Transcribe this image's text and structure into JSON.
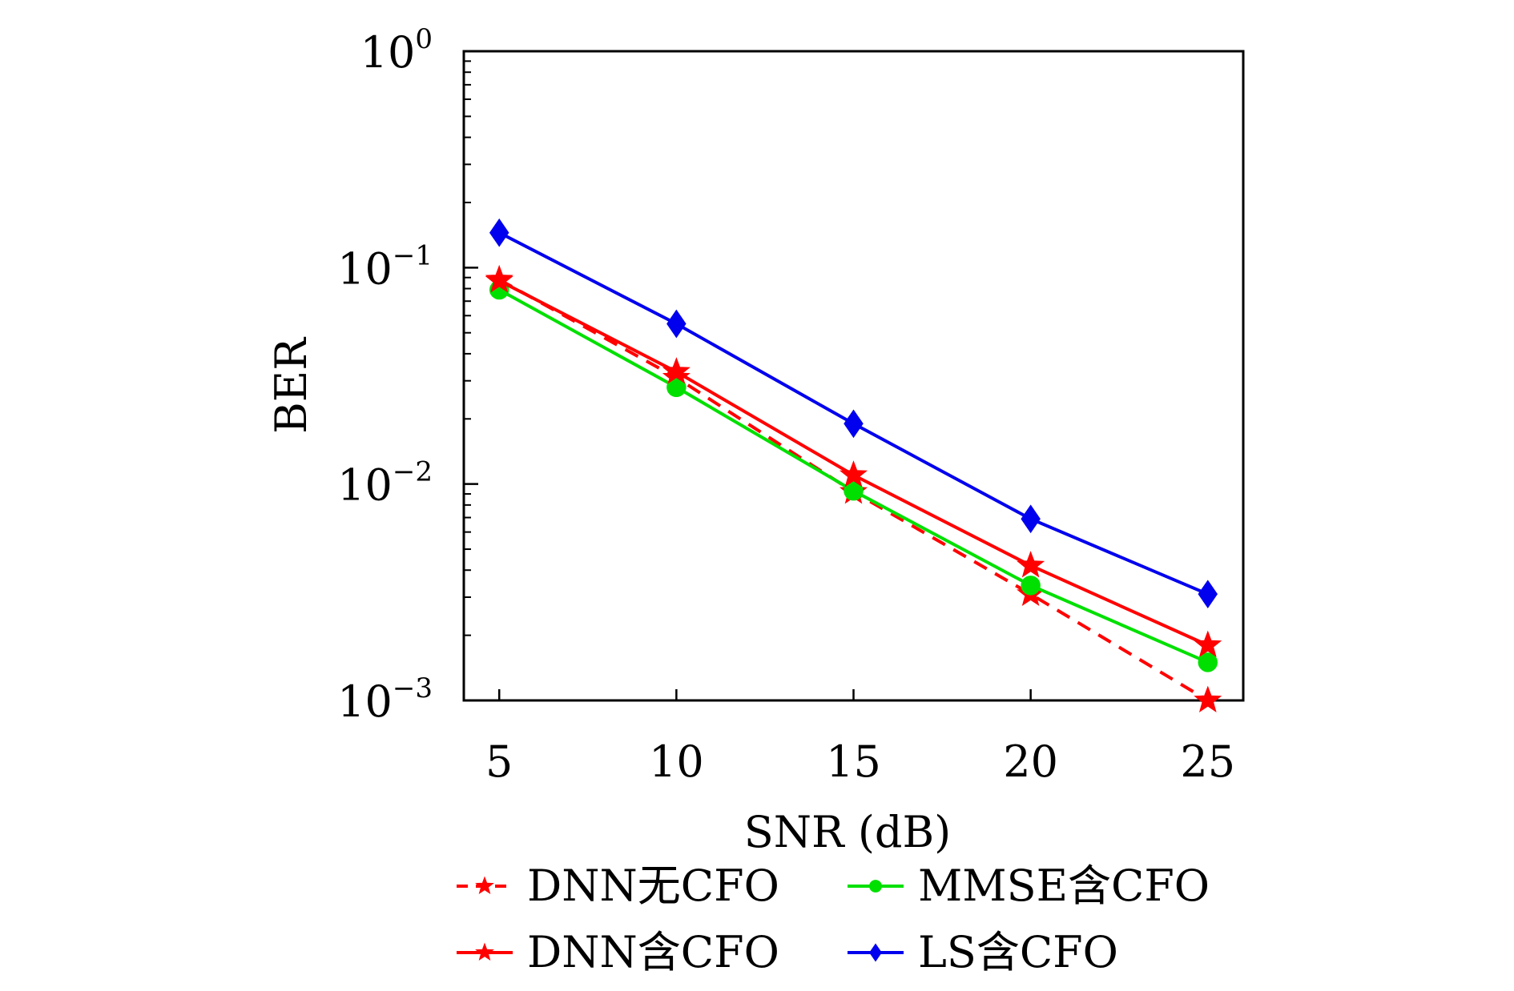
{
  "chart_data": {
    "type": "line",
    "title": "",
    "xlabel": "SNR (dB)",
    "ylabel": "BER",
    "x": [
      5,
      10,
      15,
      20,
      25
    ],
    "xlim": [
      4,
      26
    ],
    "ylim": [
      0.001,
      1
    ],
    "yscale": "log",
    "x_ticks": [
      "5",
      "10",
      "15",
      "20",
      "25"
    ],
    "y_ticks": [
      {
        "base": "10",
        "exp": "0",
        "value": 1
      },
      {
        "base": "10",
        "exp": "−1",
        "value": 0.1
      },
      {
        "base": "10",
        "exp": "−2",
        "value": 0.01
      },
      {
        "base": "10",
        "exp": "−3",
        "value": 0.001
      }
    ],
    "grid": false,
    "legend_position": "bottom",
    "series": [
      {
        "name": "DNN无CFO",
        "color": "#ff0000",
        "line": "dashed",
        "marker": "star",
        "values": [
          0.088,
          0.031,
          0.0092,
          0.0031,
          0.001
        ]
      },
      {
        "name": "MMSE含CFO",
        "color": "#00e000",
        "line": "solid",
        "marker": "circle",
        "values": [
          0.079,
          0.028,
          0.0093,
          0.0034,
          0.0015
        ]
      },
      {
        "name": "DNN含CFO",
        "color": "#ff0000",
        "line": "solid",
        "marker": "star",
        "values": [
          0.087,
          0.033,
          0.011,
          0.0042,
          0.0018
        ]
      },
      {
        "name": "LS含CFO",
        "color": "#0000ee",
        "line": "solid",
        "marker": "diamond",
        "values": [
          0.145,
          0.055,
          0.019,
          0.0069,
          0.0031
        ]
      }
    ]
  }
}
